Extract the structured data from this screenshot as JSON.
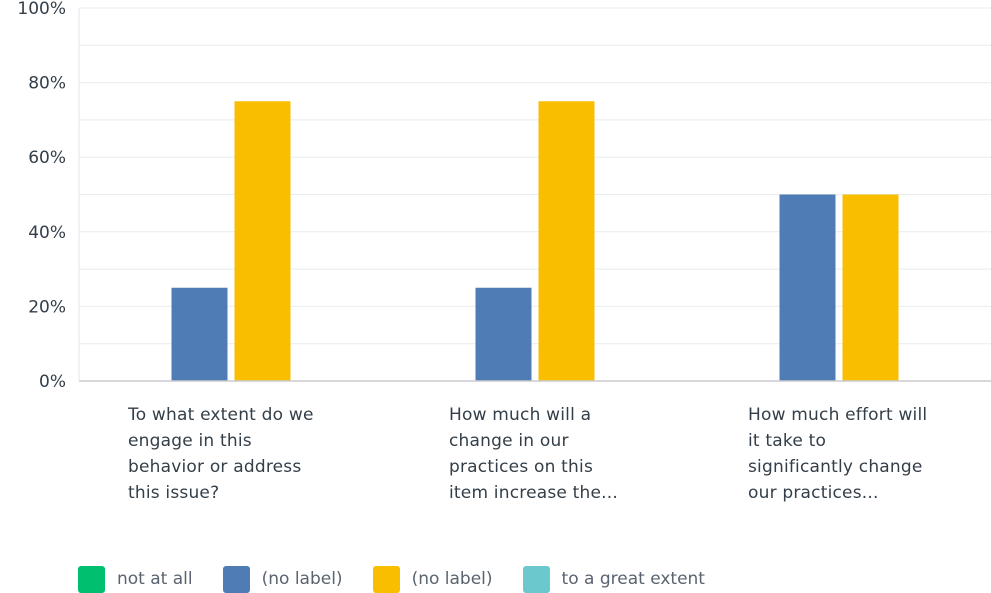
{
  "chart_data": {
    "type": "bar",
    "categories": [
      [
        "To what extent do we",
        "engage in this",
        "behavior or address",
        "this issue?"
      ],
      [
        "How much will a",
        "change in our",
        "practices on this",
        "item increase the..."
      ],
      [
        "How much effort will",
        "it take to",
        "significantly change",
        "our practices..."
      ]
    ],
    "series": [
      {
        "name": "not at all",
        "color": "#00bf6f",
        "values": [
          0,
          0,
          0
        ]
      },
      {
        "name": "(no label)",
        "color": "#507cb6",
        "values": [
          25,
          25,
          50
        ]
      },
      {
        "name": "(no label)",
        "color": "#f9be00",
        "values": [
          75,
          75,
          50
        ]
      },
      {
        "name": "to a great extent",
        "color": "#6bc8cd",
        "values": [
          0,
          0,
          0
        ]
      }
    ],
    "ylim": [
      0,
      100
    ],
    "yticks": [
      "0%",
      "20%",
      "40%",
      "60%",
      "80%",
      "100%"
    ],
    "ytick_values": [
      0,
      20,
      40,
      60,
      80,
      100
    ],
    "grid": true,
    "legend_position": "bottom"
  }
}
